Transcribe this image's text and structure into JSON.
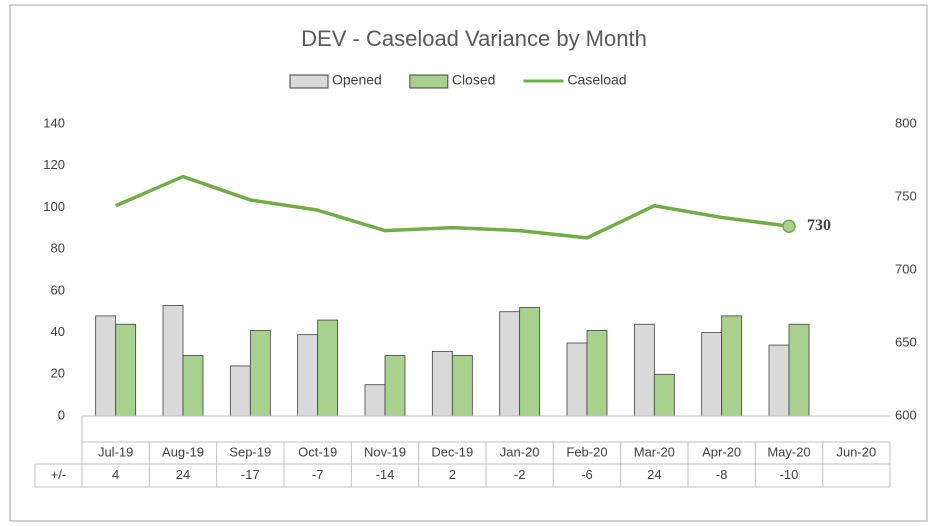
{
  "chart_data": {
    "type": "bar",
    "title": "DEV - Caseload Variance by Month",
    "categories": [
      "Jul-19",
      "Aug-19",
      "Sep-19",
      "Oct-19",
      "Nov-19",
      "Dec-19",
      "Jan-20",
      "Feb-20",
      "Mar-20",
      "Apr-20",
      "May-20",
      "Jun-20"
    ],
    "series": [
      {
        "name": "Opened",
        "type": "bar",
        "color": "#d9d9d9",
        "values": [
          48,
          53,
          24,
          39,
          15,
          31,
          50,
          35,
          44,
          40,
          34,
          null
        ]
      },
      {
        "name": "Closed",
        "type": "bar",
        "color": "#a9d18e",
        "values": [
          44,
          29,
          41,
          46,
          29,
          29,
          52,
          41,
          20,
          48,
          44,
          null
        ]
      },
      {
        "name": "Caseload",
        "type": "line",
        "axis": "y2",
        "color": "#70ad47",
        "values": [
          744,
          764,
          748,
          741,
          727,
          729,
          727,
          722,
          744,
          736,
          730,
          null
        ],
        "value_labels": [
          null,
          null,
          null,
          null,
          null,
          null,
          null,
          null,
          null,
          null,
          "730",
          null
        ]
      }
    ],
    "ylim": [
      0,
      140
    ],
    "yticks": [
      0,
      20,
      40,
      60,
      80,
      100,
      120,
      140
    ],
    "y2lim": [
      600,
      800
    ],
    "y2ticks": [
      600,
      650,
      700,
      750,
      800
    ],
    "table": {
      "label": "+/-",
      "values": [
        4,
        24,
        -17,
        -7,
        -14,
        2,
        -2,
        -6,
        24,
        -8,
        -10,
        null
      ]
    },
    "legend": "top",
    "grid": false
  }
}
